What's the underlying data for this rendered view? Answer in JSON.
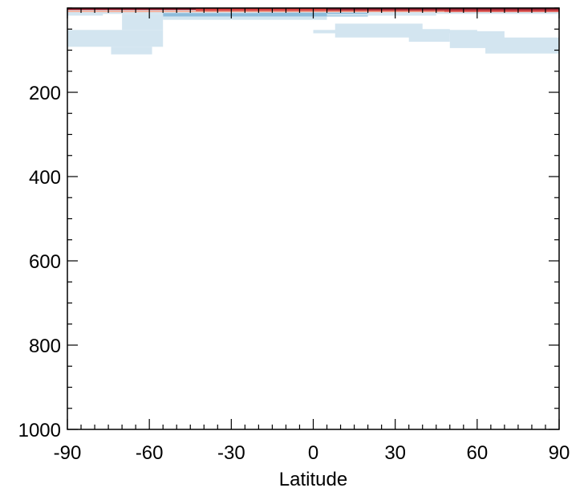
{
  "chart_data": {
    "type": "heatmap",
    "title": "",
    "xlabel": "Latitude",
    "ylabel": "",
    "xlim": [
      -90,
      90
    ],
    "ylim": [
      1000,
      0
    ],
    "y_inverted": true,
    "x_ticks": [
      -90,
      -60,
      -30,
      0,
      30,
      60,
      90
    ],
    "x_tick_labels": [
      "-90",
      "-60",
      "-30",
      "0",
      "30",
      "60",
      "90"
    ],
    "y_ticks": [
      200,
      400,
      600,
      800,
      1000
    ],
    "y_tick_labels": [
      "200",
      "400",
      "600",
      "800",
      "1000"
    ],
    "grid": false,
    "colors": {
      "dark_red": "#8b1a2b",
      "red": "#d6403f",
      "light_red": "#f0a08a",
      "mid_blue": "#8dbcdb",
      "light_blue": "#d3e5f0"
    },
    "cells": [
      {
        "lat": [
          -90,
          90
        ],
        "level": [
          0,
          5
        ],
        "color": "dark_red"
      },
      {
        "lat": [
          -43,
          5
        ],
        "level": [
          2,
          7
        ],
        "color": "red"
      },
      {
        "lat": [
          5,
          90
        ],
        "level": [
          5,
          9
        ],
        "color": "red"
      },
      {
        "lat": [
          -90,
          48
        ],
        "level": [
          7,
          10
        ],
        "color": "light_red"
      },
      {
        "lat": [
          48,
          90
        ],
        "level": [
          9,
          12
        ],
        "color": "light_red"
      },
      {
        "lat": [
          -90,
          -77
        ],
        "level": [
          10,
          18
        ],
        "color": "light_blue"
      },
      {
        "lat": [
          -90,
          90
        ],
        "level": [
          10,
          14
        ],
        "color": "light_blue"
      },
      {
        "lat": [
          -55,
          -20
        ],
        "level": [
          12,
          22
        ],
        "color": "mid_blue"
      },
      {
        "lat": [
          -20,
          20
        ],
        "level": [
          11,
          20
        ],
        "color": "mid_blue"
      },
      {
        "lat": [
          -70,
          -55
        ],
        "level": [
          14,
          52
        ],
        "color": "light_blue"
      },
      {
        "lat": [
          -55,
          5
        ],
        "level": [
          20,
          28
        ],
        "color": "light_blue"
      },
      {
        "lat": [
          5,
          45
        ],
        "level": [
          14,
          18
        ],
        "color": "light_blue"
      },
      {
        "lat": [
          -90,
          -55
        ],
        "level": [
          52,
          92
        ],
        "color": "light_blue"
      },
      {
        "lat": [
          -74,
          -59
        ],
        "level": [
          92,
          110
        ],
        "color": "light_blue"
      },
      {
        "lat": [
          0,
          60
        ],
        "level": [
          52,
          60
        ],
        "color": "light_blue"
      },
      {
        "lat": [
          8,
          40
        ],
        "level": [
          37,
          70
        ],
        "color": "light_blue"
      },
      {
        "lat": [
          35,
          50
        ],
        "level": [
          50,
          80
        ],
        "color": "light_blue"
      },
      {
        "lat": [
          50,
          70
        ],
        "level": [
          55,
          95
        ],
        "color": "light_blue"
      },
      {
        "lat": [
          63,
          90
        ],
        "level": [
          70,
          108
        ],
        "color": "light_blue"
      }
    ]
  }
}
